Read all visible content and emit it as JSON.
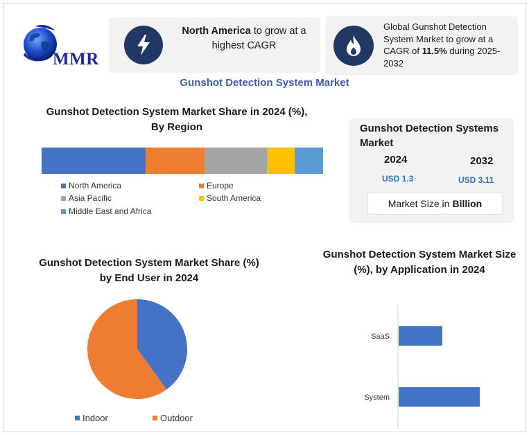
{
  "logo": {
    "text": "MMR"
  },
  "highlight_cards": [
    {
      "icon": "lightning-bolt-icon",
      "bold": "North America",
      "rest": " to grow at a highest CAGR"
    },
    {
      "icon": "flame-icon",
      "pre": "Global Gunshot Detection System Market to grow at a CAGR of ",
      "bold": "11.5%",
      "post": " during 2025-2032"
    }
  ],
  "main_title": "Gunshot Detection System Market",
  "colors": {
    "title_blue": "#3d5fa8",
    "north_america": "#4472c4",
    "europe": "#ed7d31",
    "asia_pacific": "#a5a5a5",
    "south_america": "#ffc000",
    "middle_east_africa": "#5b9bd5",
    "badge": "#1f3864"
  },
  "market_size": {
    "title": "Gunshot Detection Systems Market",
    "years": [
      {
        "year": "2024",
        "value": "USD 1.3"
      },
      {
        "year": "2032",
        "value": "USD 3.11"
      }
    ],
    "unit_pre": "Market Size in ",
    "unit_bold": "Billion"
  },
  "chart_data": [
    {
      "type": "bar",
      "orientation": "horizontal-stacked",
      "title": "Gunshot Detection System Market Share in 2024 (%), By Region",
      "series": [
        {
          "name": "North America",
          "values": [
            37
          ]
        },
        {
          "name": "Europe",
          "values": [
            21
          ]
        },
        {
          "name": "Asia Pacific",
          "values": [
            22
          ]
        },
        {
          "name": "South America",
          "values": [
            10
          ]
        },
        {
          "name": "Middle East and Africa",
          "values": [
            10
          ]
        }
      ],
      "legend": "bottom"
    },
    {
      "type": "pie",
      "title": "Gunshot Detection System Market Share (%) by End User in 2024",
      "categories": [
        "Indoor",
        "Outdoor"
      ],
      "values": [
        40,
        60
      ],
      "legend": "bottom"
    },
    {
      "type": "bar",
      "orientation": "horizontal",
      "title": "Gunshot Detection System Market Size (%), by Application in 2024",
      "categories": [
        "SaaS",
        "System"
      ],
      "values": [
        35,
        65
      ],
      "xlim": [
        0,
        100
      ],
      "grid": false
    }
  ]
}
